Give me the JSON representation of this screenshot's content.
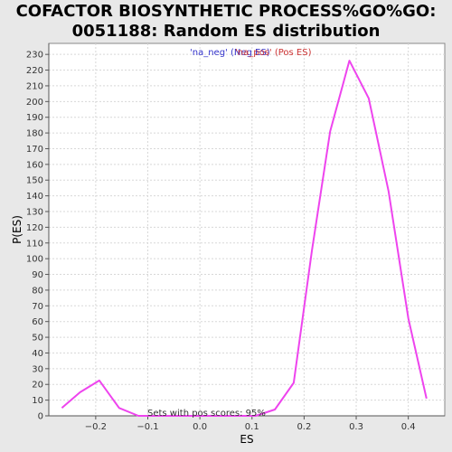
{
  "chart_data": {
    "type": "line",
    "title_line1": "COFACTOR BIOSYNTHETIC PROCESS%GO%GO:",
    "title_line2": "0051188: Random ES distribution",
    "xlabel": "ES",
    "ylabel": "P(ES)",
    "xlim": [
      -0.29,
      0.47
    ],
    "ylim": [
      0,
      237
    ],
    "x_ticks": [
      -0.2,
      -0.1,
      0.0,
      0.1,
      0.2,
      0.3,
      0.4
    ],
    "x_tick_labels": [
      "−0.2",
      "−0.1",
      "0.0",
      "0.1",
      "0.2",
      "0.3",
      "0.4"
    ],
    "y_ticks": [
      0,
      10,
      20,
      30,
      40,
      50,
      60,
      70,
      80,
      90,
      100,
      110,
      120,
      130,
      140,
      150,
      160,
      170,
      180,
      190,
      200,
      210,
      220,
      230
    ],
    "grid": true,
    "legend": {
      "placement": "top-center",
      "entries": [
        {
          "label": "'na_neg' (Neg ES)",
          "color": "#3333cc"
        },
        {
          "label": "'na_pos' (Pos ES)",
          "color": "#cc3333"
        }
      ]
    },
    "annotation": "Sets with pos scores: 95%",
    "series": [
      {
        "color": "#ee44ee",
        "x": [
          -0.265,
          -0.23,
          -0.193,
          -0.155,
          -0.118,
          -0.08,
          -0.043,
          -0.005,
          0.032,
          0.07,
          0.107,
          0.144,
          0.18,
          0.215,
          0.25,
          0.287,
          0.324,
          0.362,
          0.4,
          0.435
        ],
        "y": [
          5,
          15,
          22.5,
          5,
          0,
          0,
          0,
          0,
          0,
          0,
          0,
          4,
          21,
          105,
          181,
          226,
          202,
          143,
          62,
          11
        ]
      }
    ]
  }
}
